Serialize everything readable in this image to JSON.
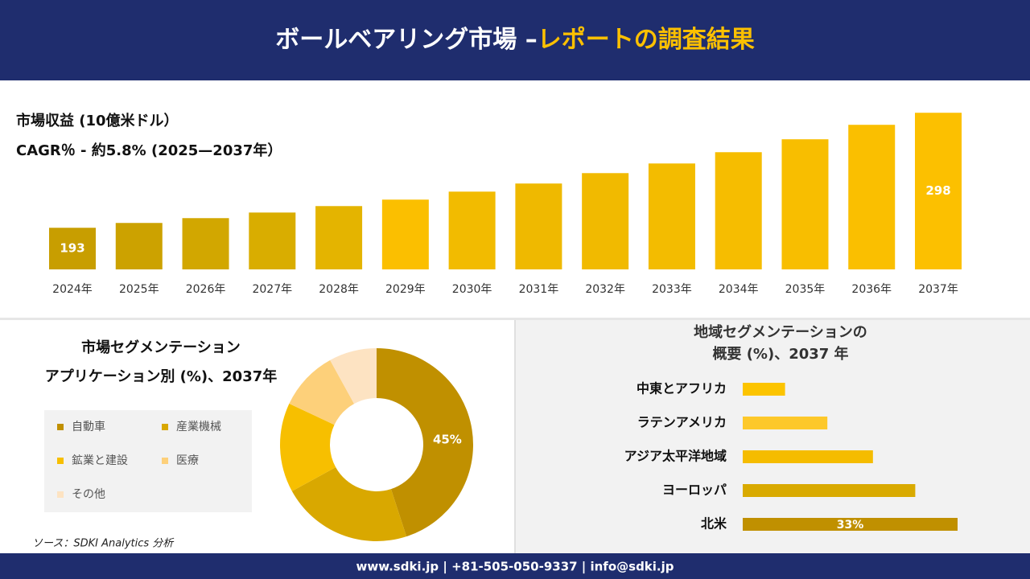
{
  "header": {
    "title_main": "ボールベアリング市場 –",
    "title_highlight": "レポートの調査結果"
  },
  "chart_data": [
    {
      "type": "bar",
      "title": "市場収益 (10億米ドル）",
      "subtitle": "CAGR％ - 約5.8% (2025—2037年）",
      "categories": [
        "2024年",
        "2025年",
        "2026年",
        "2027年",
        "2028年",
        "2029年",
        "2030年",
        "2031年",
        "2032年",
        "2033年",
        "2034年",
        "2035年",
        "2036年",
        "2037年"
      ],
      "values": [
        193,
        197.4,
        201.8,
        206.9,
        212.8,
        218.7,
        226,
        233.4,
        242.9,
        251.7,
        262,
        273.8,
        287,
        298
      ],
      "value_labels": [
        "193",
        null,
        null,
        null,
        null,
        null,
        null,
        null,
        null,
        null,
        null,
        null,
        null,
        "298"
      ],
      "colors": [
        "#c89e00",
        "#cca200",
        "#d2a700",
        "#d9ad00",
        "#e4b400",
        "#fbbf00",
        "#f2bb00",
        "#efb900",
        "#f1ba00",
        "#f3bc00",
        "#f6bd00",
        "#f8be00",
        "#fabf00",
        "#fcc000"
      ],
      "ylim": [
        155,
        300
      ]
    },
    {
      "type": "donut",
      "title": "市場セグメンテーション",
      "subtitle": "アプリケーション別 (%)、2037年",
      "categories": [
        "自動車",
        "産業機械",
        "鉱業と建設",
        "医療",
        "その他"
      ],
      "values": [
        45,
        22,
        15,
        10,
        8
      ],
      "value_labels": [
        "45%",
        null,
        null,
        null,
        null
      ],
      "colors": [
        "#c09000",
        "#d9a800",
        "#f7bf00",
        "#fdd07a",
        "#fde3c2"
      ]
    },
    {
      "type": "hbar",
      "title": [
        "地域セグメンテーションの",
        "概要 (%)、2037 年"
      ],
      "categories": [
        "中東とアフリカ",
        "ラテンアメリカ",
        "アジア太平洋地域",
        "ヨーロッパ",
        "北米"
      ],
      "values": [
        6.5,
        13,
        20,
        26.5,
        33
      ],
      "value_labels": [
        null,
        null,
        null,
        null,
        "33%"
      ],
      "colors": [
        "#fcc400",
        "#fdc82a",
        "#f5bc00",
        "#d9aa00",
        "#c09000"
      ],
      "xlim": [
        0,
        33
      ]
    }
  ],
  "source": "ソース：SDKI Analytics 分析",
  "footer": "www.sdki.jp | +81-505-050-9337 | info@sdki.jp"
}
